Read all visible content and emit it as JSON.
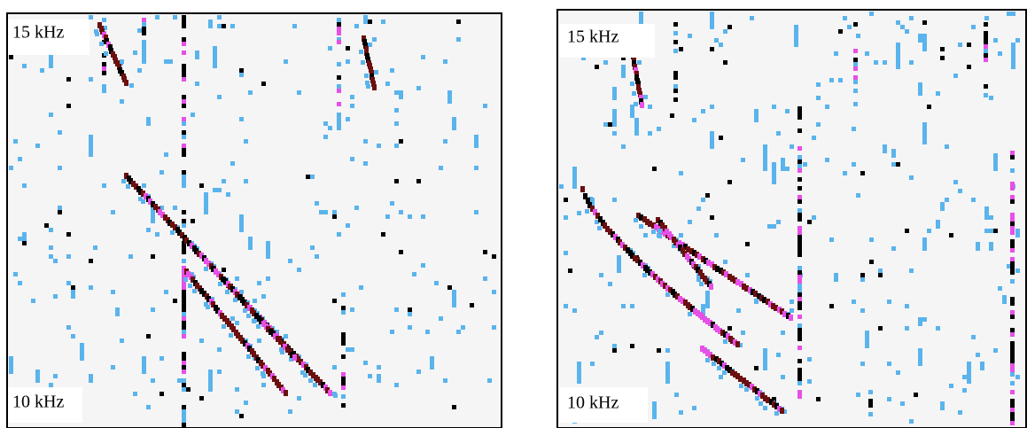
{
  "panels": [
    {
      "top_label": "15 kHz",
      "bottom_label": "10 kHz"
    },
    {
      "top_label": "15 kHz",
      "bottom_label": "10 kHz"
    }
  ]
}
